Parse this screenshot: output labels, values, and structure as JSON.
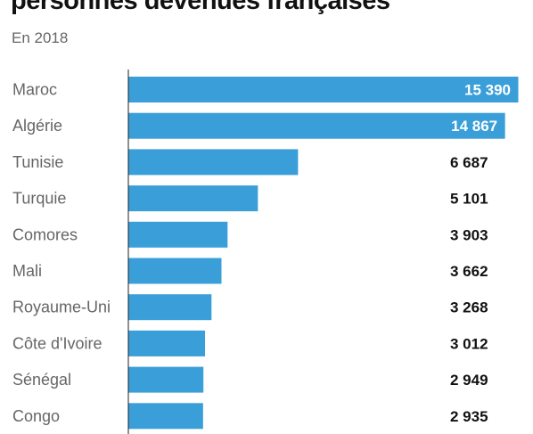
{
  "title": "personnes devenues françaises",
  "subtitle": "En 2018",
  "colors": {
    "bar": "#3a9fd8",
    "axis": "#222222"
  },
  "chart_data": {
    "type": "bar",
    "orientation": "horizontal",
    "categories": [
      "Maroc",
      "Algérie",
      "Tunisie",
      "Turquie",
      "Comores",
      "Mali",
      "Royaume-Uni",
      "Côte d'Ivoire",
      "Sénégal",
      "Congo"
    ],
    "values": [
      15390,
      14867,
      6687,
      5101,
      3903,
      3662,
      3268,
      3012,
      2949,
      2935
    ],
    "value_labels": [
      "15 390",
      "14 867",
      "6 687",
      "5 101",
      "3 903",
      "3 662",
      "3 268",
      "3 012",
      "2 949",
      "2 935"
    ],
    "xlim": [
      0,
      15390
    ],
    "grid": false
  }
}
